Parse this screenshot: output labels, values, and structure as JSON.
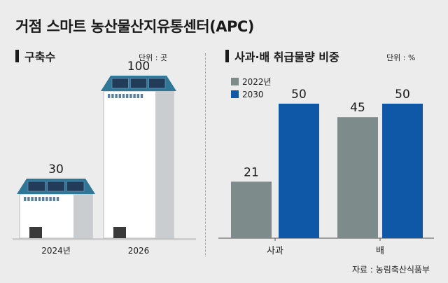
{
  "title": "거점 스마트 농산물산지유통센터(APC)",
  "left_section": {
    "title": "구축수",
    "unit": "단위 : 곳"
  },
  "right_section": {
    "title": "사과·배 취급물량 비중",
    "unit": "단위 : %"
  },
  "source": "자료 : 농림축산식품부",
  "colors": {
    "gray": "#7d8b8b",
    "blue": "#0f58a8",
    "roof": "#2f7797",
    "panel": "#223b58"
  },
  "chart_data": [
    {
      "type": "bar",
      "title": "구축수",
      "categories": [
        "2024년",
        "2026"
      ],
      "values": [
        30,
        100
      ],
      "unit": "곳"
    },
    {
      "type": "bar",
      "title": "사과·배 취급물량 비중",
      "categories": [
        "사과",
        "배"
      ],
      "series": [
        {
          "name": "2022년",
          "values": [
            21,
            45
          ]
        },
        {
          "name": "2030",
          "values": [
            50,
            50
          ]
        }
      ],
      "unit": "%",
      "ylim": [
        0,
        100
      ]
    }
  ]
}
